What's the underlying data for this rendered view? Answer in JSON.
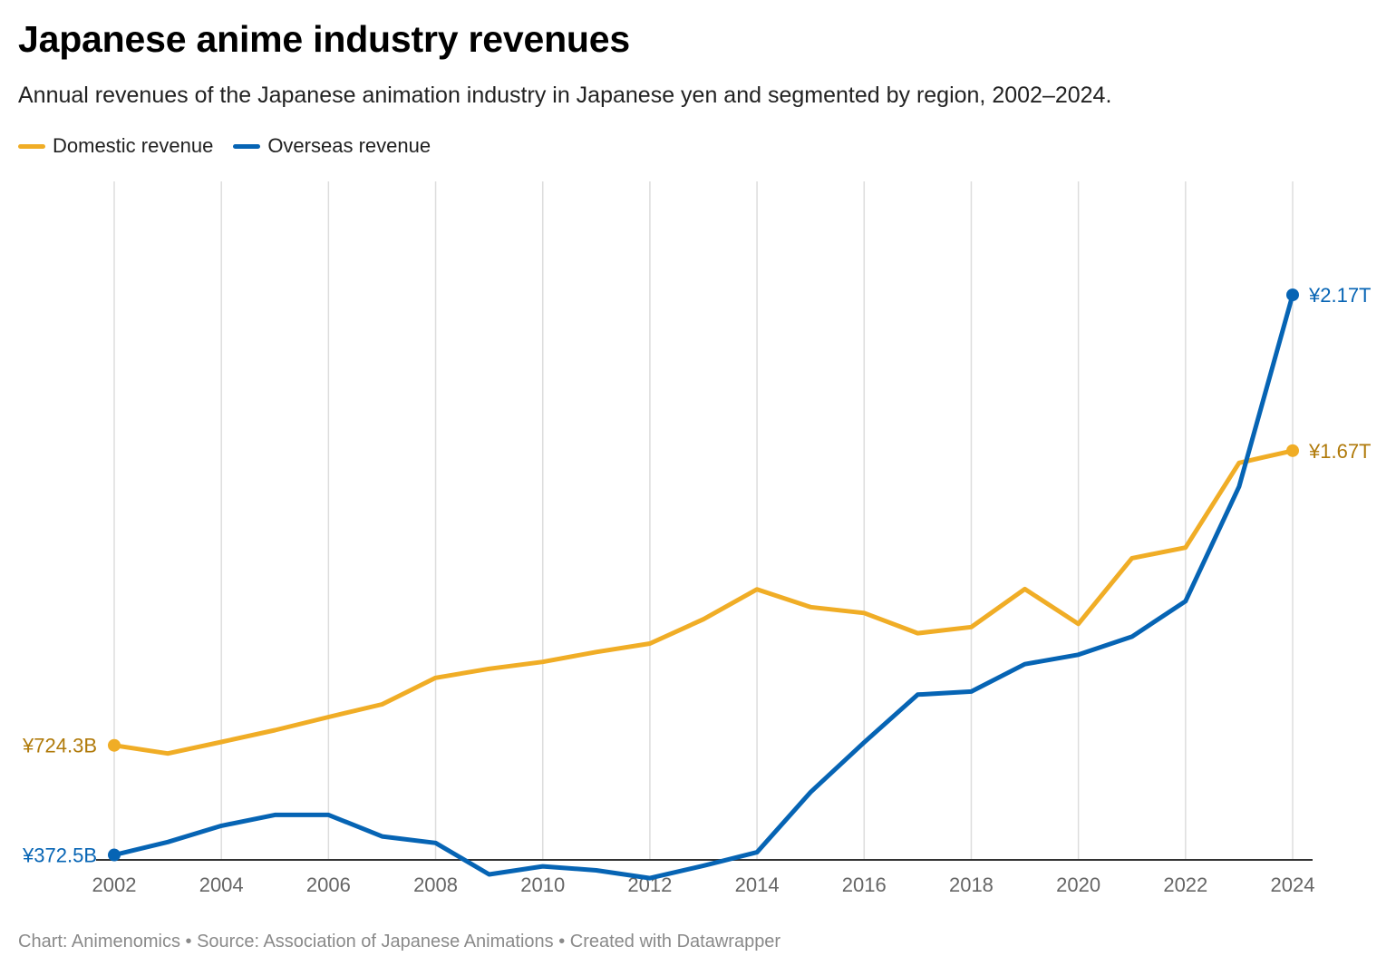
{
  "title": "Japanese anime industry revenues",
  "subtitle": "Annual revenues of the Japanese animation industry in Japanese yen and segmented by region, 2002–2024.",
  "footer": "Chart: Animenomics • Source: Association of Japanese Animations • Created with Datawrapper",
  "colors": {
    "domestic": "#f0ad26",
    "overseas": "#0664b4",
    "domestic_label": "#b07a0a",
    "overseas_label": "#0664b4",
    "grid": "#dddddd",
    "axis": "#333333",
    "tick": "#666666"
  },
  "chart_data": {
    "type": "line",
    "x": [
      2002,
      2003,
      2004,
      2005,
      2006,
      2007,
      2008,
      2009,
      2010,
      2011,
      2012,
      2013,
      2014,
      2015,
      2016,
      2017,
      2018,
      2019,
      2020,
      2021,
      2022,
      2023,
      2024
    ],
    "xticks": [
      2002,
      2004,
      2006,
      2008,
      2010,
      2012,
      2014,
      2016,
      2018,
      2020,
      2022,
      2024
    ],
    "xtick_labels": [
      "2002",
      "2004",
      "2006",
      "2008",
      "2010",
      "2012",
      "2014",
      "2016",
      "2018",
      "2020",
      "2022",
      "2024"
    ],
    "ylim": [
      0,
      2200
    ],
    "y_unit": "billion yen",
    "grid": "vertical",
    "legend_position": "top-left",
    "series": [
      {
        "name": "Domestic revenue",
        "key": "domestic",
        "values": [
          724.3,
          698,
          735,
          773,
          815,
          856,
          941,
          970,
          992,
          1024,
          1051,
          1129,
          1225,
          1168,
          1149,
          1084,
          1104,
          1226,
          1114,
          1325,
          1359,
          1631,
          1670
        ],
        "start_label": "¥724.3B",
        "end_label": "¥1.67T"
      },
      {
        "name": "Overseas revenue",
        "key": "overseas",
        "values": [
          372.5,
          414,
          466,
          501,
          501,
          432,
          411,
          310,
          336,
          323,
          298,
          338,
          381,
          574,
          734,
          887,
          897,
          985,
          1015,
          1073,
          1187,
          1555,
          2170
        ],
        "start_label": "¥372.5B",
        "end_label": "¥2.17T"
      }
    ]
  }
}
